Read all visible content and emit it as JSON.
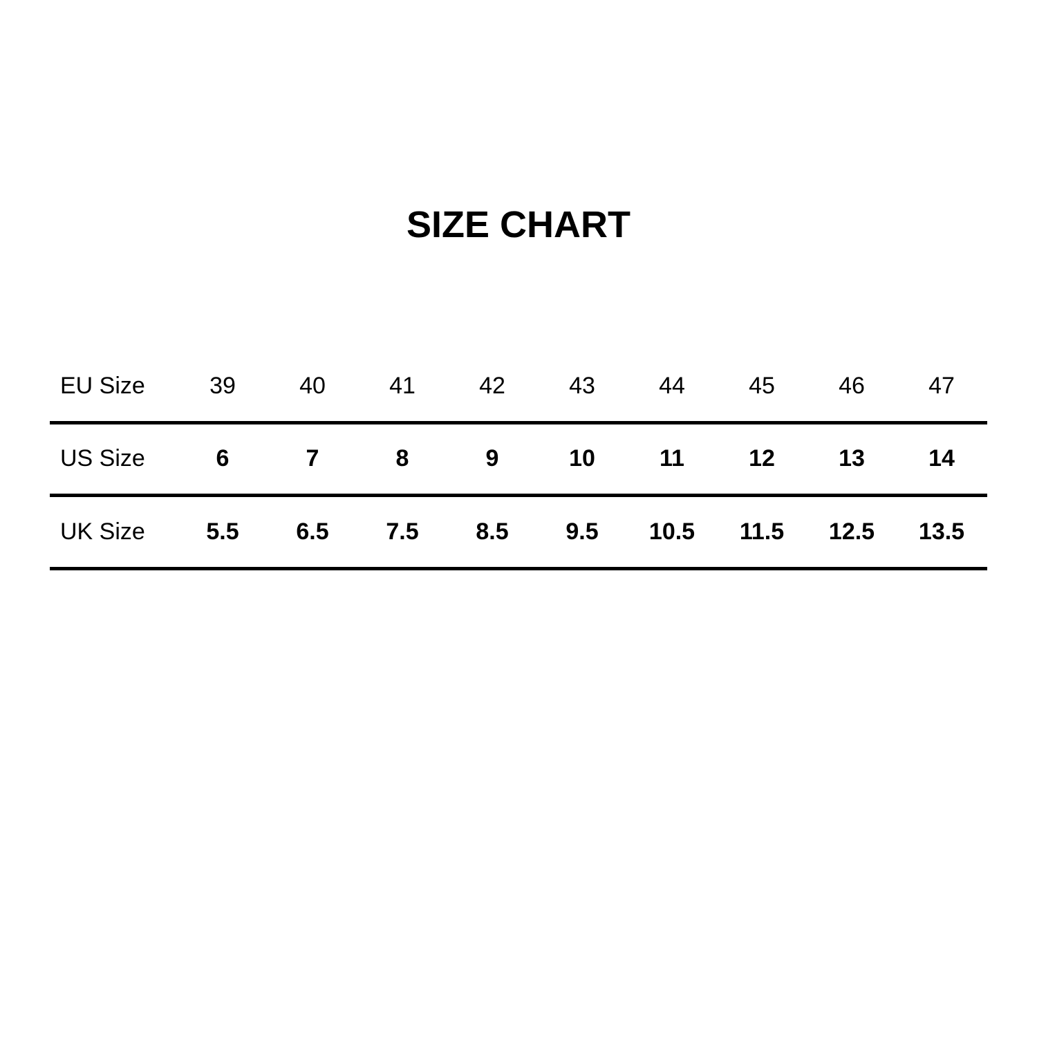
{
  "title": "SIZE CHART",
  "rows": [
    {
      "label": "EU Size",
      "values": [
        "39",
        "40",
        "41",
        "42",
        "43",
        "44",
        "45",
        "46",
        "47"
      ]
    },
    {
      "label": "US Size",
      "values": [
        "6",
        "7",
        "8",
        "9",
        "10",
        "11",
        "12",
        "13",
        "14"
      ]
    },
    {
      "label": "UK Size",
      "values": [
        "5.5",
        "6.5",
        "7.5",
        "8.5",
        "9.5",
        "10.5",
        "11.5",
        "12.5",
        "13.5"
      ]
    }
  ]
}
